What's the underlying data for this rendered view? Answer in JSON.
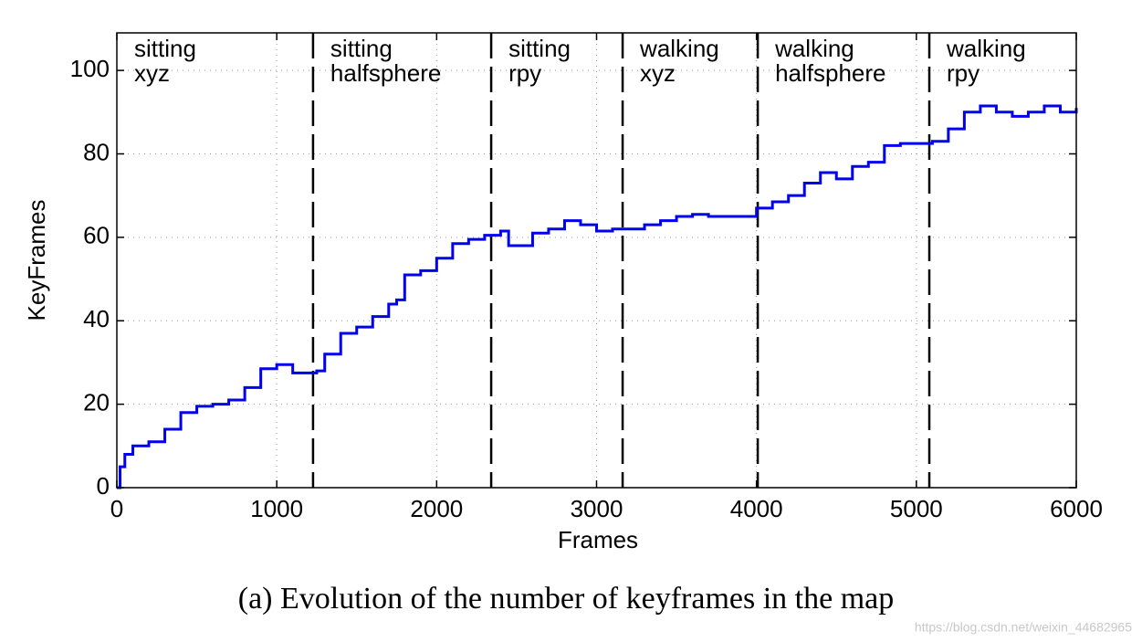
{
  "chart_data": {
    "type": "line",
    "xlabel": "Frames",
    "ylabel": "KeyFrames",
    "caption": "(a) Evolution of the number of keyframes in the map",
    "watermark": "https://blog.csdn.net/weixin_44682965",
    "xlim": [
      0,
      6000
    ],
    "xticks": [
      0,
      1000,
      2000,
      3000,
      4000,
      5000,
      6000
    ],
    "ylim": [
      0,
      109
    ],
    "yticks": [
      0,
      20,
      40,
      60,
      80,
      100
    ],
    "grid": true,
    "dividers": [
      1227,
      2341,
      3163,
      4008,
      5081
    ],
    "segments": [
      [
        "sitting",
        "xyz"
      ],
      [
        "sitting",
        "halfsphere"
      ],
      [
        "sitting",
        "rpy"
      ],
      [
        "walking",
        "xyz"
      ],
      [
        "walking",
        "halfsphere"
      ],
      [
        "walking",
        "rpy"
      ]
    ],
    "series": [
      {
        "color": "#0000ee",
        "x": [
          0,
          20,
          50,
          100,
          200,
          300,
          400,
          500,
          600,
          700,
          800,
          900,
          1000,
          1100,
          1200,
          1250,
          1300,
          1400,
          1500,
          1600,
          1700,
          1750,
          1800,
          1900,
          2000,
          2100,
          2200,
          2300,
          2400,
          2450,
          2500,
          2600,
          2700,
          2800,
          2900,
          3000,
          3100,
          3200,
          3300,
          3400,
          3500,
          3600,
          3700,
          3800,
          3900,
          4000,
          4100,
          4200,
          4300,
          4400,
          4500,
          4600,
          4700,
          4800,
          4900,
          5000,
          5100,
          5200,
          5300,
          5400,
          5500,
          5600,
          5700,
          5800,
          5900,
          6000
        ],
        "values": [
          0,
          5,
          8,
          10,
          11,
          14,
          18,
          19.5,
          20,
          21,
          24,
          28.5,
          29.5,
          27.5,
          27.5,
          28,
          32,
          37,
          38.5,
          41,
          44,
          45,
          51,
          52,
          55,
          58.5,
          59.5,
          60.5,
          61.5,
          58,
          58,
          61,
          62,
          64,
          63,
          61.5,
          62,
          62,
          63,
          64,
          65,
          65.5,
          65,
          65,
          65,
          67,
          68.5,
          70,
          73,
          75.5,
          74,
          77,
          78,
          82,
          82.5,
          82.5,
          83,
          86,
          90,
          91.5,
          90,
          89,
          90,
          91.5,
          90,
          91
        ]
      }
    ]
  }
}
